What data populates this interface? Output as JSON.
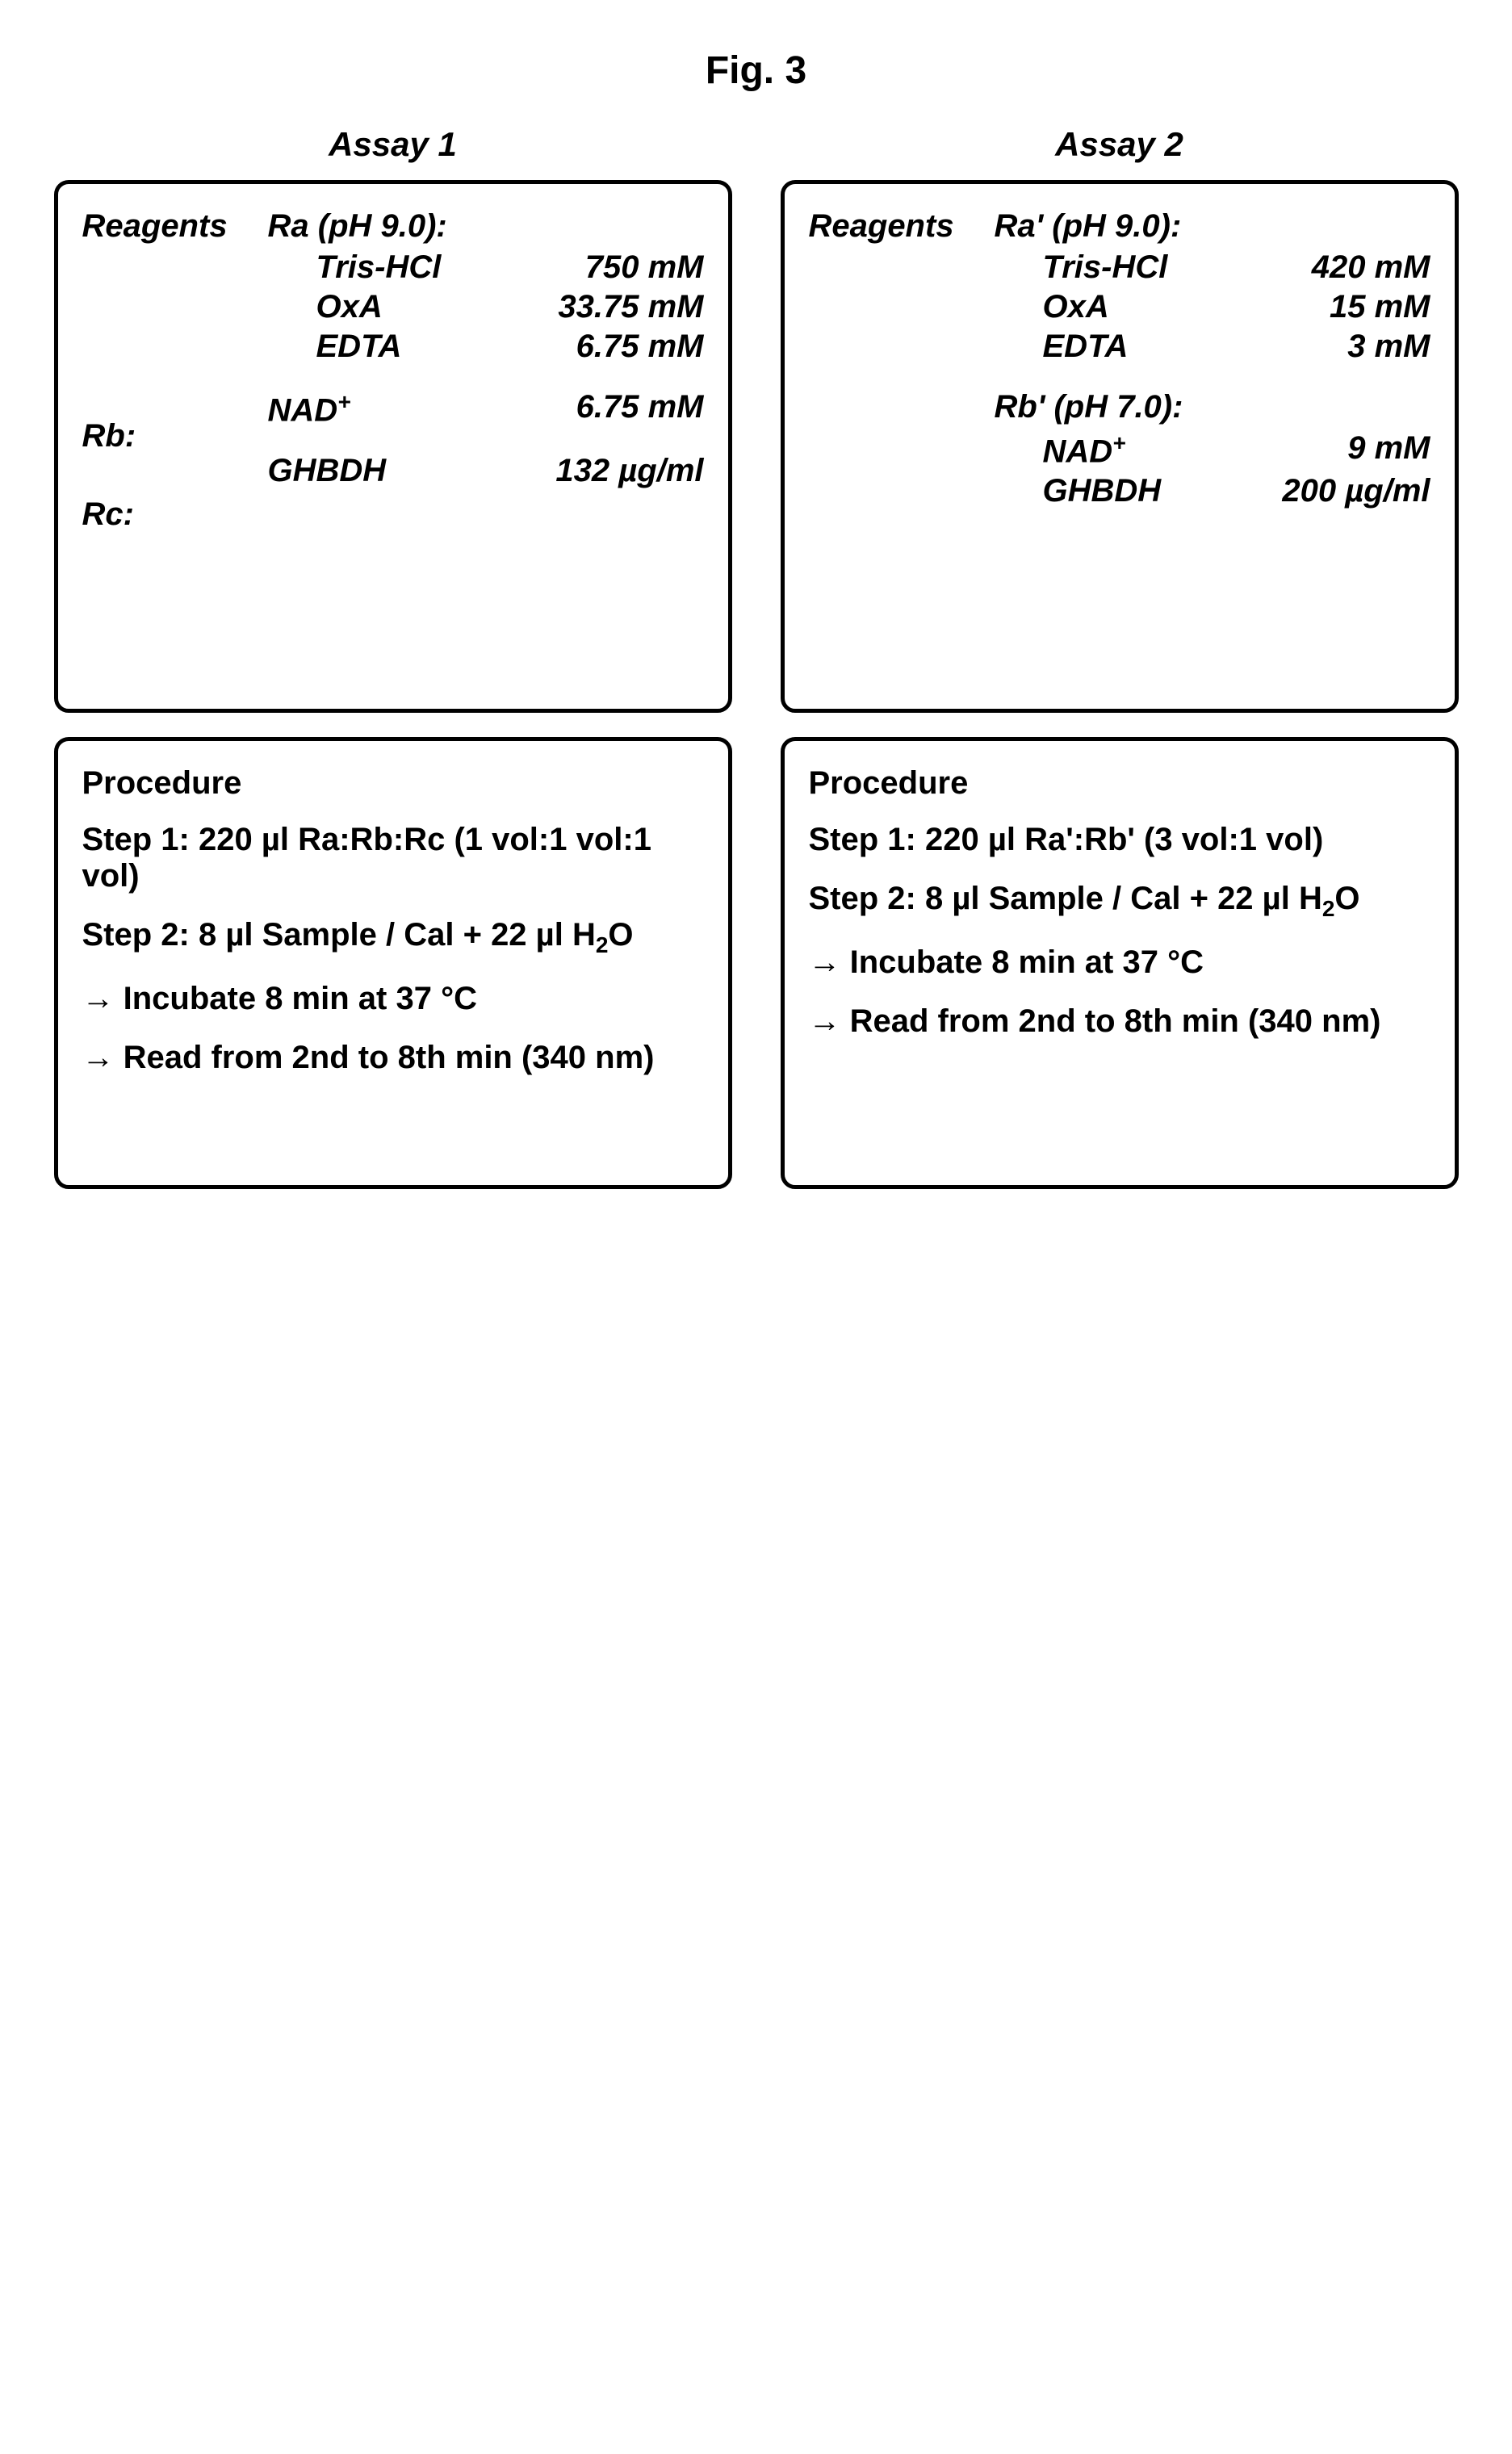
{
  "figure_title": "Fig. 3",
  "assays": [
    {
      "title": "Assay 1",
      "reagents_label": "Reagents",
      "reagent_groups": [
        {
          "left": "",
          "name": "Ra (pH 9.0):",
          "has_name": true,
          "items": [
            {
              "chem": "Tris-HCl",
              "conc": "750 mM"
            },
            {
              "chem": "OxA",
              "conc": "33.75 mM"
            },
            {
              "chem": "EDTA",
              "conc": "6.75 mM"
            }
          ]
        },
        {
          "left": "Rb:",
          "name": "",
          "has_name": false,
          "items": [
            {
              "chem": "NAD",
              "chem_sup": "+",
              "conc": "6.75 mM"
            }
          ]
        },
        {
          "left": "Rc:",
          "name": "",
          "has_name": false,
          "items": [
            {
              "chem": "GHBDH",
              "conc": "132 µg/ml"
            }
          ]
        }
      ],
      "procedure_label": "Procedure",
      "procedure_lines": [
        {
          "text": "Step 1: 220 µl  Ra:Rb:Rc  (1 vol:1 vol:1 vol)"
        },
        {
          "prefix": "Step 2:   8 µl Sample / Cal  +   22 µl H",
          "sub": "2",
          "suffix": "O"
        },
        {
          "text": "→ Incubate 8 min at 37 °C"
        },
        {
          "text": "→ Read from 2nd to 8th min (340 nm)"
        }
      ]
    },
    {
      "title": "Assay 2",
      "reagents_label": "Reagents",
      "reagent_groups": [
        {
          "left": "",
          "name": "Ra' (pH 9.0):",
          "has_name": true,
          "items": [
            {
              "chem": "Tris-HCl",
              "conc": "420 mM"
            },
            {
              "chem": "OxA",
              "conc": "15 mM"
            },
            {
              "chem": "EDTA",
              "conc": "3 mM"
            }
          ]
        },
        {
          "left": "",
          "name": "Rb' (pH 7.0):",
          "has_name": true,
          "items": [
            {
              "chem": "NAD",
              "chem_sup": "+",
              "conc": "9 mM"
            },
            {
              "chem": "GHBDH",
              "conc": "200 µg/ml"
            }
          ]
        }
      ],
      "procedure_label": "Procedure",
      "procedure_lines": [
        {
          "text": "Step 1: 220 µl Ra':Rb'      (3 vol:1 vol)"
        },
        {
          "prefix": "Step 2:   8 µl Sample / Cal  +   22 µl H",
          "sub": "2",
          "suffix": "O"
        },
        {
          "text": "→ Incubate 8 min at 37 °C"
        },
        {
          "text": "→ Read from 2nd to 8th min (340 nm)"
        }
      ]
    }
  ]
}
